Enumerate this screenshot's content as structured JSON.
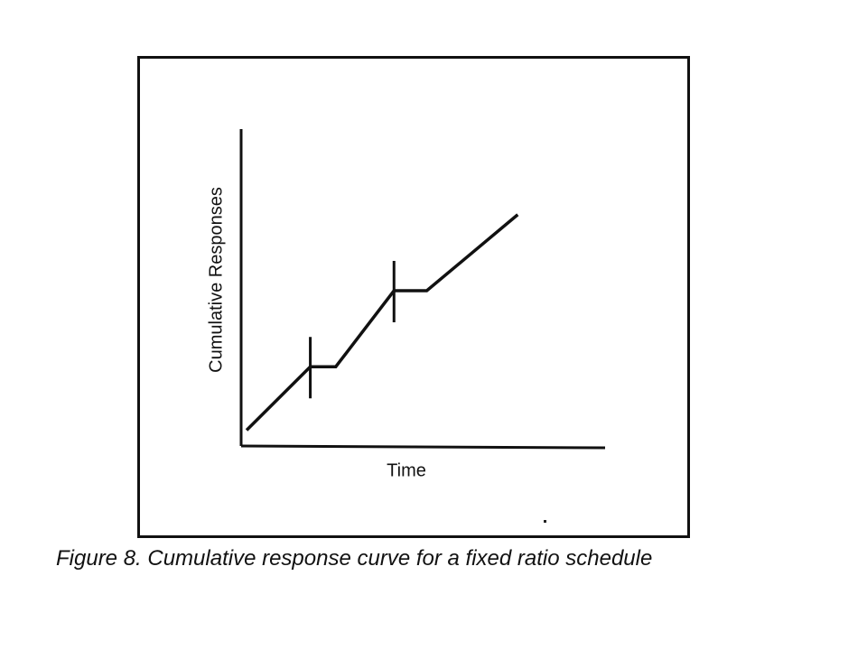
{
  "chart_data": {
    "type": "line",
    "title": "",
    "xlabel": "Time",
    "ylabel": "Cumulative Responses",
    "xlim": [
      0,
      10
    ],
    "ylim": [
      0,
      10
    ],
    "grid": false,
    "legend": "none",
    "ticks": false,
    "series": [
      {
        "name": "",
        "points": [
          {
            "x": 0.15,
            "y": 0.5
          },
          {
            "x": 1.9,
            "y": 2.5
          },
          {
            "x": 2.6,
            "y": 2.5
          },
          {
            "x": 4.2,
            "y": 4.9
          },
          {
            "x": 5.1,
            "y": 4.9
          },
          {
            "x": 7.6,
            "y": 7.3
          }
        ]
      }
    ],
    "reinforcement_marks": [
      {
        "x": 1.9,
        "y": 2.5
      },
      {
        "x": 4.2,
        "y": 4.9
      }
    ]
  },
  "caption": "Figure 8. Cumulative response curve for a fixed ratio schedule",
  "colors": {
    "line": "#111111",
    "background": "#ffffff"
  }
}
